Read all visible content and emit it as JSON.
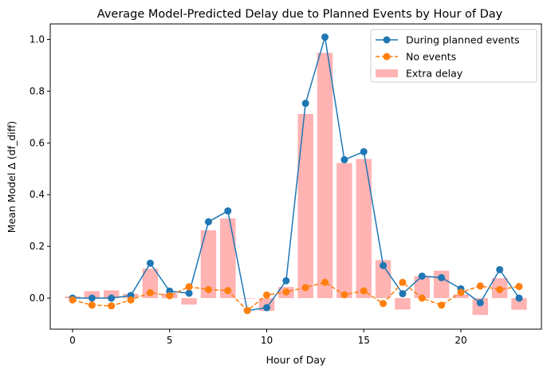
{
  "chart_data": {
    "type": "line",
    "title": "Average Model-Predicted Delay due to Planned Events by Hour of Day",
    "xlabel": "Hour of Day",
    "ylabel": "Mean Model Δ (df_diff)",
    "xlim": [
      -1.15,
      24.15
    ],
    "ylim": [
      -0.12,
      1.06
    ],
    "xticks": [
      0,
      5,
      10,
      15,
      20
    ],
    "yticks": [
      0.0,
      0.2,
      0.4,
      0.6,
      0.8,
      1.0
    ],
    "x": [
      0,
      1,
      2,
      3,
      4,
      5,
      6,
      7,
      8,
      9,
      10,
      11,
      12,
      13,
      14,
      15,
      16,
      17,
      18,
      19,
      20,
      21,
      22,
      23
    ],
    "series": [
      {
        "name": "During planned events",
        "style": "line-marker",
        "color": "#1f77b4",
        "values": [
          0.0,
          0.0,
          0.0,
          0.01,
          0.135,
          0.027,
          0.019,
          0.295,
          0.337,
          -0.048,
          -0.037,
          0.067,
          0.753,
          1.009,
          0.535,
          0.566,
          0.126,
          0.017,
          0.085,
          0.079,
          0.036,
          -0.018,
          0.11,
          0.0
        ]
      },
      {
        "name": "No events",
        "style": "dashed-marker",
        "color": "#ff7f0e",
        "values": [
          -0.007,
          -0.027,
          -0.03,
          -0.007,
          0.021,
          0.009,
          0.044,
          0.033,
          0.029,
          -0.048,
          0.012,
          0.024,
          0.041,
          0.061,
          0.013,
          0.028,
          -0.021,
          0.061,
          0.0,
          -0.027,
          0.022,
          0.047,
          0.033,
          0.045
        ]
      },
      {
        "name": "Extra delay",
        "style": "bar",
        "color": "#ffb3b3",
        "values": [
          0.007,
          0.027,
          0.03,
          0.017,
          0.114,
          0.018,
          -0.025,
          0.262,
          0.308,
          0.0,
          -0.049,
          0.043,
          0.712,
          0.948,
          0.522,
          0.538,
          0.147,
          -0.044,
          0.085,
          0.106,
          0.014,
          -0.065,
          0.077,
          -0.045
        ]
      }
    ],
    "legend_position": "top-right",
    "grid": false
  }
}
